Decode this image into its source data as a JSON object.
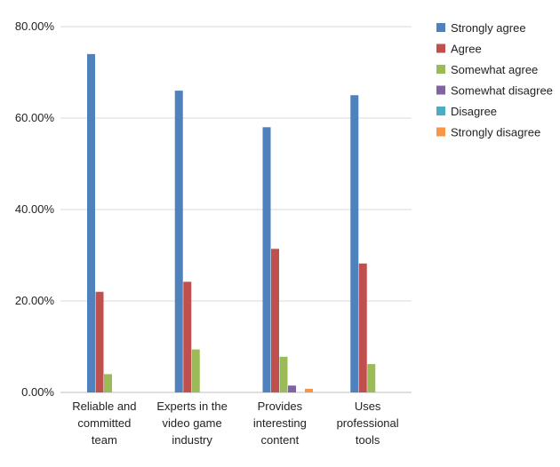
{
  "chart_data": {
    "type": "bar",
    "title": "",
    "xlabel": "",
    "ylabel": "",
    "ylim": [
      0,
      80
    ],
    "yticks": [
      0,
      20,
      40,
      60,
      80
    ],
    "ytick_labels": [
      "0.00%",
      "20.00%",
      "40.00%",
      "60.00%",
      "80.00%"
    ],
    "grid": true,
    "legend_position": "top-right",
    "categories": [
      [
        "Reliable and",
        "committed",
        "team"
      ],
      [
        "Experts in the",
        "video game",
        "industry"
      ],
      [
        "Provides",
        "interesting",
        "content"
      ],
      [
        "Uses",
        "professional",
        "tools"
      ]
    ],
    "series": [
      {
        "name": "Strongly agree",
        "color": "#4F81BD",
        "values": [
          74.0,
          66.0,
          58.0,
          65.0
        ]
      },
      {
        "name": "Agree",
        "color": "#C0504D",
        "values": [
          22.0,
          24.2,
          31.4,
          28.2
        ]
      },
      {
        "name": "Somewhat agree",
        "color": "#9BBB59",
        "values": [
          4.0,
          9.4,
          7.8,
          6.2
        ]
      },
      {
        "name": "Somewhat disagree",
        "color": "#8064A2",
        "values": [
          0,
          0,
          1.5,
          0
        ]
      },
      {
        "name": "Disagree",
        "color": "#4BACC6",
        "values": [
          0,
          0,
          0,
          0
        ]
      },
      {
        "name": "Strongly disagree",
        "color": "#F79646",
        "values": [
          0,
          0,
          0.8,
          0
        ]
      }
    ]
  }
}
